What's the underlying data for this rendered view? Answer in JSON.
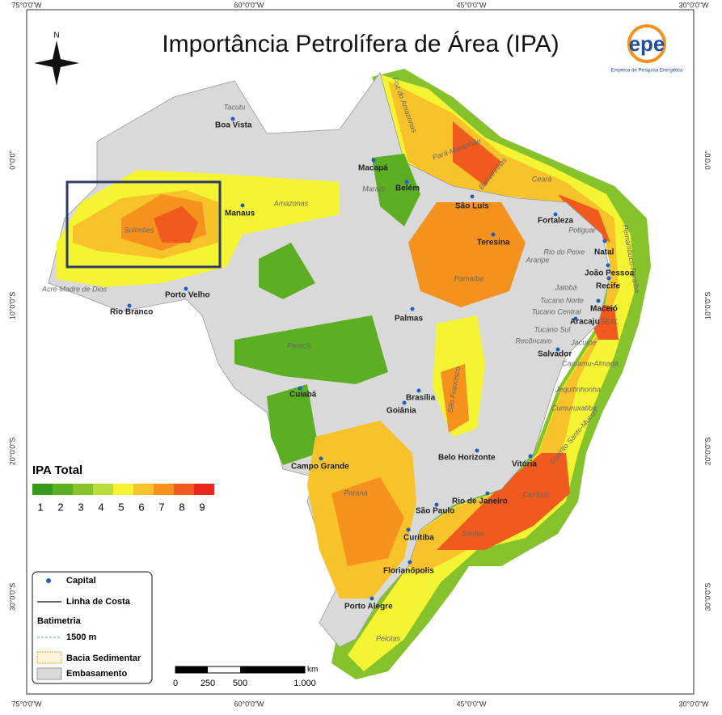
{
  "title": "Importância Petrolífera de Área (IPA)",
  "logo": {
    "name": "epe",
    "subtitle": "Empresa de Pesquisa Energética"
  },
  "north": "N",
  "coords": {
    "top": [
      "75°0'0\"W",
      "60°0'0\"W",
      "45°0'0\"W",
      "30°0'0\"W"
    ],
    "bottom": [
      "75°0'0\"W",
      "60°0'0\"W",
      "45°0'0\"W",
      "30°0'0\"W"
    ],
    "left": [
      "0°0'0\"",
      "10°0'0\"S",
      "20°0'0\"S",
      "30°0'0\"S"
    ],
    "right": [
      "0°0'0\"",
      "10°0'0\"S",
      "20°0'0\"S",
      "30°0'0\"S"
    ]
  },
  "cities": [
    "Boa Vista",
    "Macapá",
    "Belém",
    "São Luís",
    "Manaus",
    "Fortaleza",
    "Teresina",
    "Natal",
    "João Pessoa",
    "Recife",
    "Maceió",
    "Aracaju",
    "Salvador",
    "Palmas",
    "Porto Velho",
    "Rio Branco",
    "Brasília",
    "Goiânia",
    "Cuiabá",
    "Campo Grande",
    "Belo Horizonte",
    "Vitória",
    "Rio de Janeiro",
    "São Paulo",
    "Curitiba",
    "Florianópolis",
    "Porto Alegre"
  ],
  "basins": [
    "Tacutu",
    "Foz do Amazonas",
    "Pará-Maranhão",
    "Barreirinhas",
    "Ceará",
    "Potiguar",
    "Marajó",
    "Amazonas",
    "Solimões",
    "Acre-Madre de Dios",
    "Parnaíba",
    "Rio do Peixe",
    "Araripe",
    "Jatobá",
    "Tucano Norte",
    "Tucano Central",
    "Tucano Sul",
    "SEAL",
    "Recôncavo",
    "Jacuípe",
    "Camamu-Almada",
    "Jequitinhonha",
    "Cumuruxatiba",
    "Espírito Santo-Mucuri",
    "Campos",
    "Santos",
    "Pelotas",
    "Paraná",
    "Parecis",
    "São Francisco",
    "Pernambuco-Paraíba"
  ],
  "legend": {
    "title": "IPA Total",
    "classes": [
      {
        "label": "1",
        "color": "#3a9a1e"
      },
      {
        "label": "2",
        "color": "#5cae22"
      },
      {
        "label": "3",
        "color": "#86c22c"
      },
      {
        "label": "4",
        "color": "#b8dc3a"
      },
      {
        "label": "5",
        "color": "#f4f432"
      },
      {
        "label": "6",
        "color": "#f7c22a"
      },
      {
        "label": "7",
        "color": "#f5921e"
      },
      {
        "label": "8",
        "color": "#f05a1e"
      },
      {
        "label": "9",
        "color": "#e8261e"
      }
    ],
    "items": {
      "capital": "Capital",
      "coast": "Linha de Costa",
      "bathymetry": "Batimetria",
      "isobath": "1500 m",
      "basin": "Bacia Sedimentar",
      "basement": "Embasamento"
    }
  },
  "scale": {
    "unit": "km",
    "labels": [
      "0",
      "250",
      "500",
      "1.000"
    ]
  }
}
